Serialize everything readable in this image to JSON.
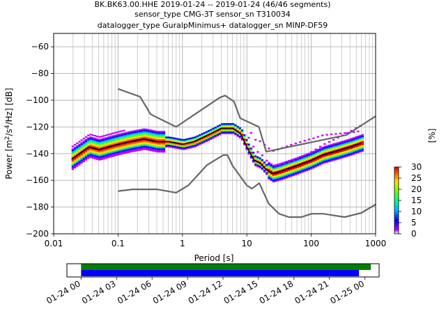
{
  "chart_data": [
    {
      "type": "heatmap",
      "title_lines": [
        "BK.BK63.00.HHE   2019-01-24 -- 2019-01-24  (46/46 segments)",
        "sensor_type CMG-3T sensor_sn T310034",
        "datalogger_type GuralpMinimus+ datalogger_sn MINP-DF59"
      ],
      "xlabel": "Period [s]",
      "ylabel": "Power [m2/s4/Hz] [dB]",
      "xscale": "log",
      "xlim": [
        0.01,
        1000
      ],
      "ylim": [
        -200,
        -50
      ],
      "x_ticks": [
        0.01,
        0.1,
        1,
        10,
        100,
        1000
      ],
      "x_tick_labels": [
        "0.01",
        "0.1",
        "1",
        "10",
        "100",
        "1000"
      ],
      "y_ticks": [
        -200,
        -180,
        -160,
        -140,
        -120,
        -100,
        -80,
        -60
      ],
      "y_tick_labels": [
        "−200",
        "−180",
        "−160",
        "−140",
        "−120",
        "−100",
        "−80",
        "−60"
      ],
      "grid": true,
      "colorbar": {
        "label": "[%]",
        "ticks": [
          0,
          5,
          10,
          15,
          20,
          25,
          30
        ],
        "range": [
          0,
          30
        ],
        "colors": [
          "#ffffff",
          "#b000ff",
          "#0000ff",
          "#00b0ff",
          "#00ff80",
          "#80ff00",
          "#ffe000",
          "#ff6000",
          "#e00000"
        ]
      },
      "series": [
        {
          "name": "",
          "role": "mode",
          "color": "#000000",
          "x": [
            0.019,
            0.025,
            0.035,
            0.05,
            0.07,
            0.1,
            0.15,
            0.25,
            0.4,
            0.6,
            1,
            1.5,
            2.5,
            4,
            6,
            8,
            10,
            13,
            16,
            20,
            25,
            30,
            40,
            60,
            100,
            150,
            250,
            400,
            600
          ],
          "y": [
            -144,
            -140,
            -135,
            -137,
            -135,
            -133,
            -131,
            -129,
            -131,
            -131,
            -133,
            -131,
            -126,
            -121,
            -121,
            -125,
            -135,
            -145,
            -147,
            -152,
            -155,
            -154,
            -152,
            -149,
            -145,
            -141,
            -138,
            -135,
            -132
          ]
        },
        {
          "name": "",
          "role": "NHNM",
          "color": "#666666",
          "x": [
            0.1,
            0.22,
            0.32,
            0.8,
            3.8,
            4.6,
            6.3,
            7.9,
            15.4,
            20,
            354.8,
            1000
          ],
          "y": [
            -91.5,
            -97.4,
            -110.5,
            -120,
            -98,
            -96.5,
            -101,
            -113.5,
            -120,
            -138.5,
            -126,
            -112
          ]
        },
        {
          "name": "",
          "role": "NLNM",
          "color": "#666666",
          "x": [
            0.1,
            0.17,
            0.4,
            0.8,
            1.24,
            2.4,
            4.3,
            5,
            6,
            10,
            12,
            15.6,
            21.9,
            31.6,
            45,
            70,
            101,
            154,
            328,
            600,
            1000
          ],
          "y": [
            -168,
            -166.7,
            -166.7,
            -169.2,
            -163.7,
            -148.6,
            -141.1,
            -141.1,
            -149,
            -163.8,
            -166.2,
            -162.1,
            -177.5,
            -185,
            -187.5,
            -187.5,
            -185,
            -185,
            -187.5,
            -184.4,
            -178
          ]
        }
      ]
    },
    {
      "type": "bar",
      "role": "data-coverage",
      "x_ticks": [
        "01-24 00",
        "01-24 03",
        "01-24 06",
        "01-24 09",
        "01-24 12",
        "01-24 15",
        "01-24 18",
        "01-24 21",
        "01-25 00"
      ],
      "xlim_hours": [
        -1.2,
        25.2
      ],
      "bars": [
        {
          "color": "#008000",
          "start_hour": 0,
          "end_hour": 24.5
        },
        {
          "color": "#0000ff",
          "start_hour": 0,
          "end_hour": 23.5
        }
      ]
    }
  ]
}
